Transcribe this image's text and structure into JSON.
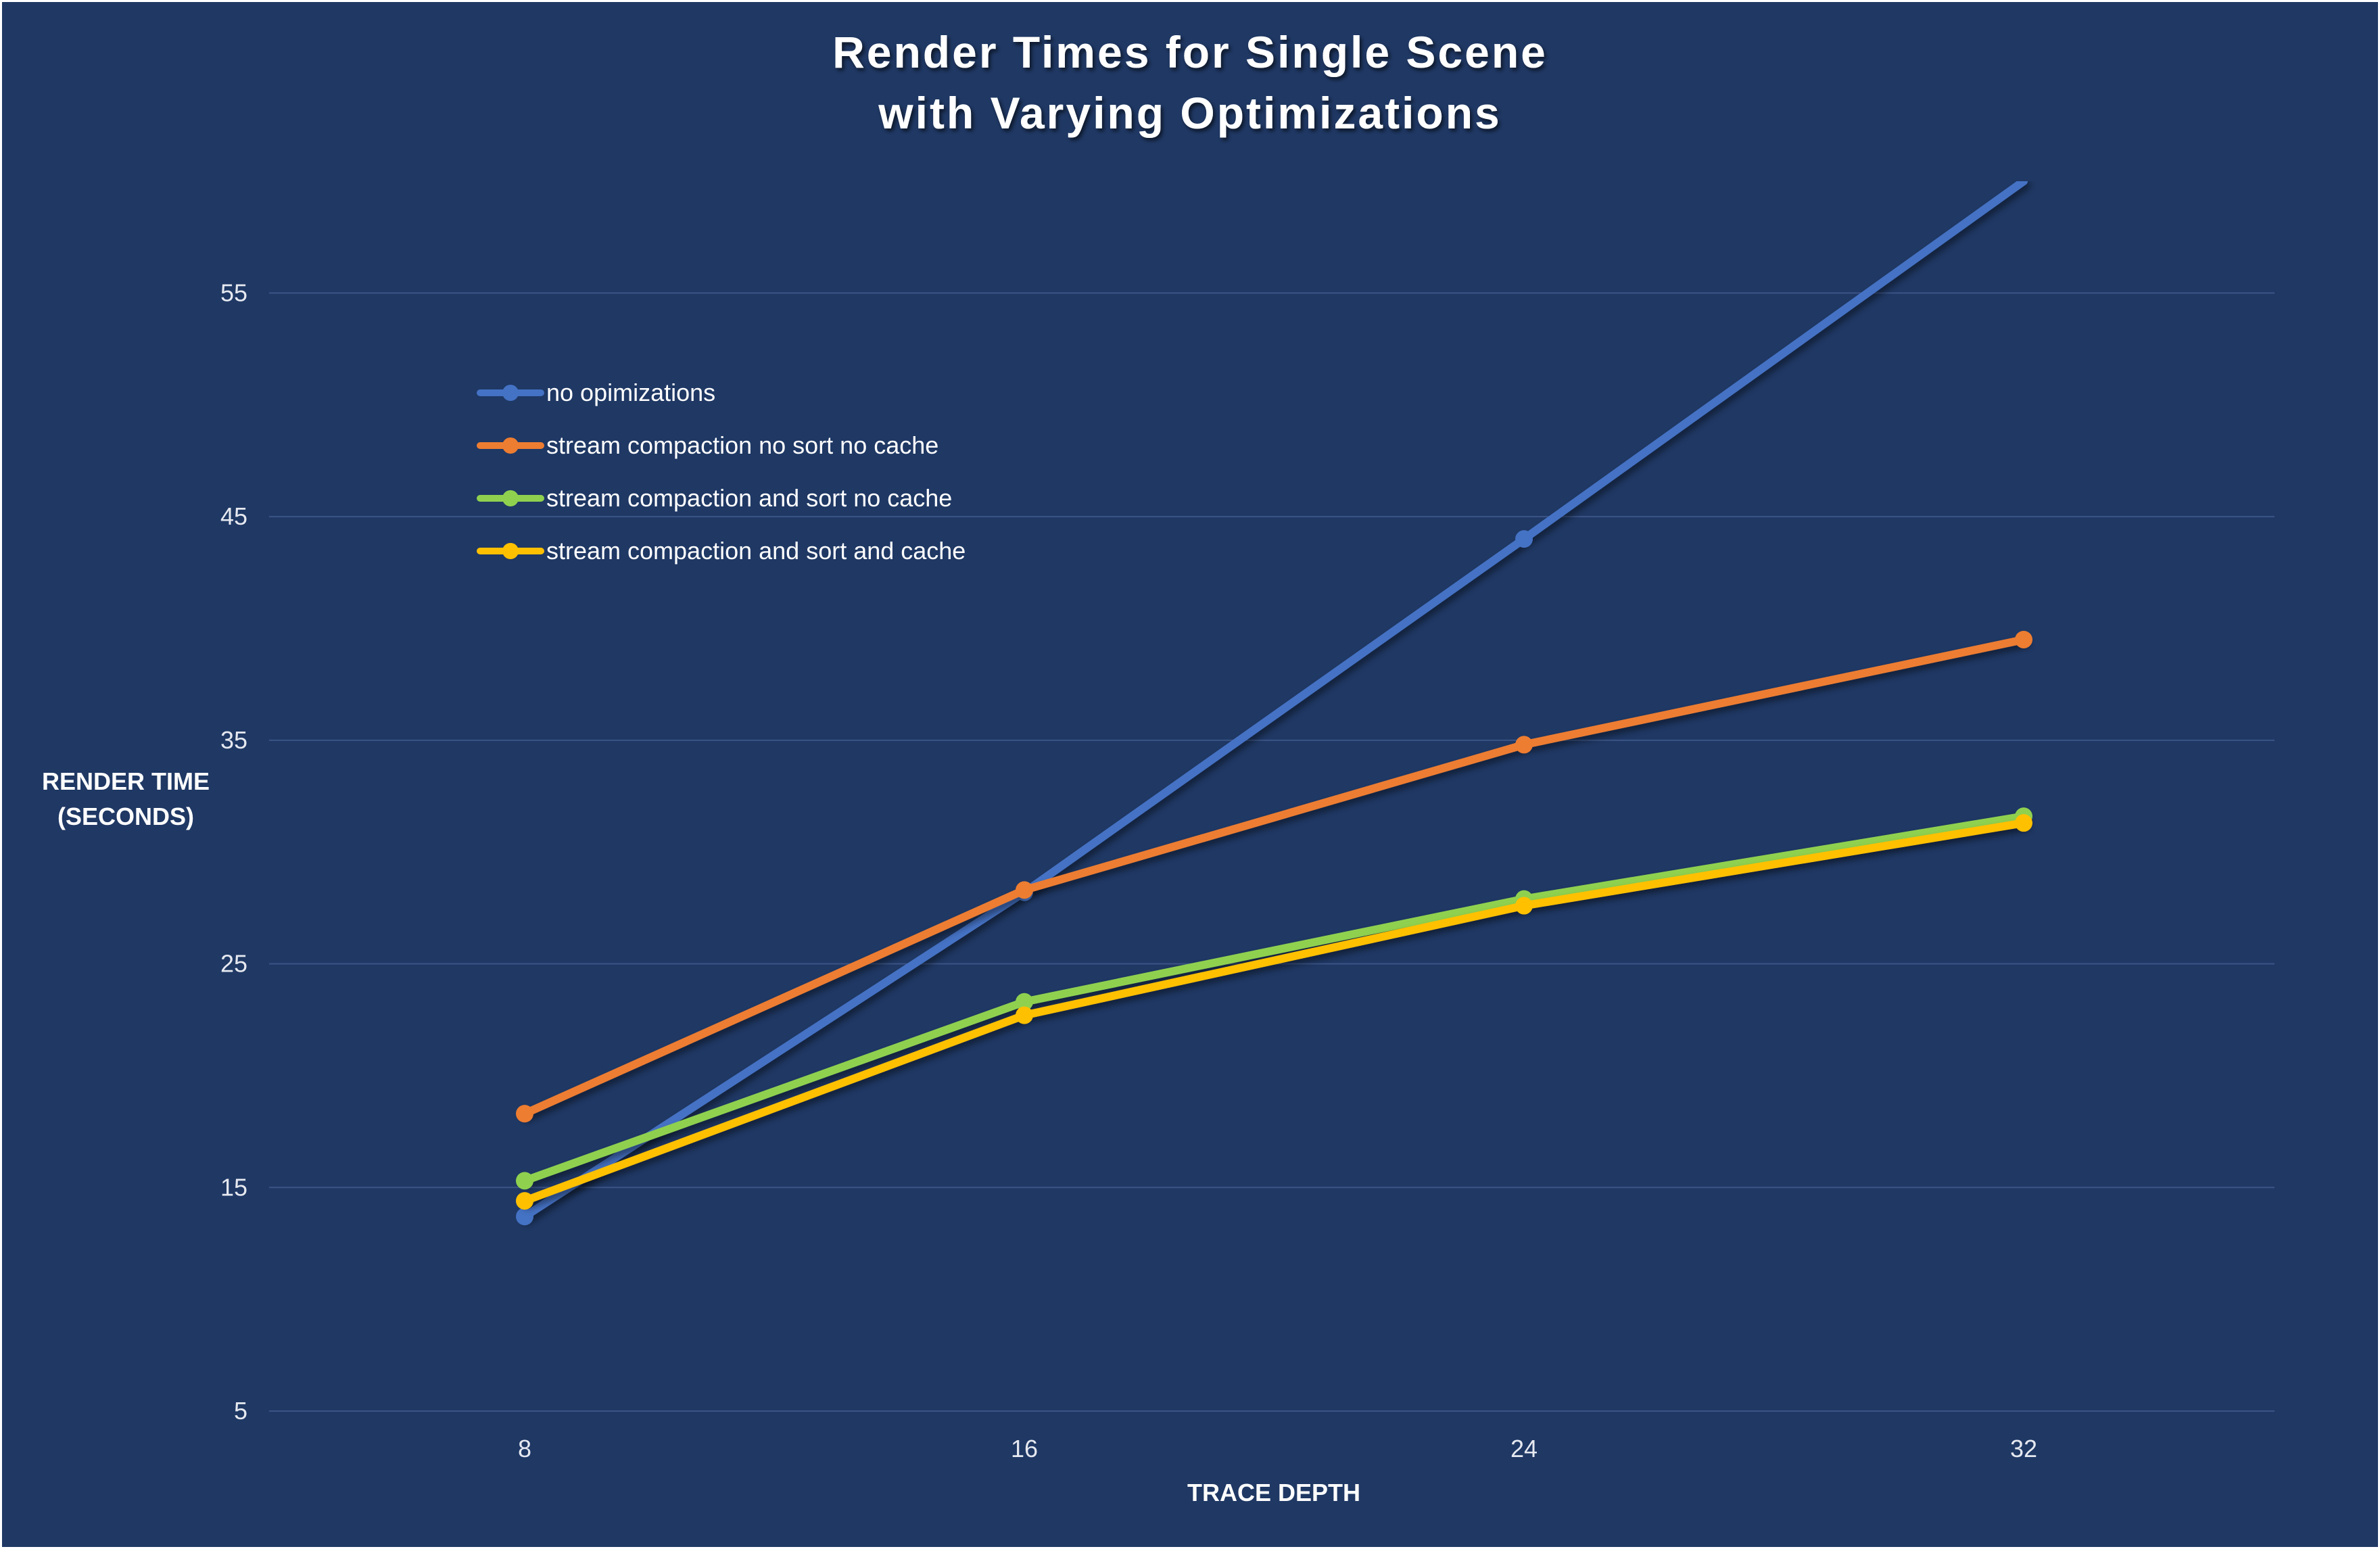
{
  "chart_data": {
    "type": "line",
    "title_lines": [
      "Render Times for Single Scene",
      "with Varying Optimizations"
    ],
    "xlabel": "TRACE DEPTH",
    "ylabel_lines": [
      "RENDER TIME",
      "(SECONDS)"
    ],
    "x": [
      8,
      16,
      24,
      32
    ],
    "x_tick_labels": [
      "8",
      "16",
      "24",
      "32"
    ],
    "y_ticks": [
      5,
      15,
      25,
      35,
      45,
      55
    ],
    "y_tick_labels": [
      "5",
      "15",
      "25",
      "35",
      "45",
      "55"
    ],
    "ylim": [
      5,
      60
    ],
    "grid": "horizontal",
    "legend_position": "top-left",
    "series": [
      {
        "name": "no opimizations",
        "color": "#4472C4",
        "values": [
          13.7,
          28.2,
          44.0,
          60.0
        ]
      },
      {
        "name": "stream compaction no sort no cache",
        "color": "#ED7D31",
        "values": [
          18.3,
          28.3,
          34.8,
          39.5
        ]
      },
      {
        "name": "stream compaction and sort no cache",
        "color": "#8FD14F",
        "values": [
          15.3,
          23.3,
          27.9,
          31.6
        ]
      },
      {
        "name": "stream compaction and sort and cache",
        "color": "#FFC000",
        "values": [
          14.4,
          22.7,
          27.6,
          31.3
        ]
      }
    ]
  },
  "colors": {
    "background": "#1F3864",
    "border": "#FFFFFF",
    "gridline": "#3B5486",
    "text": "#FFFFFF",
    "tick_text": "#E6E9F0"
  }
}
